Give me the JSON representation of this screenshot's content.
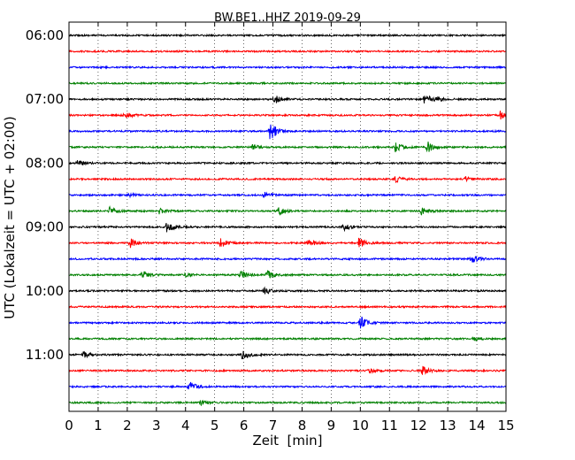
{
  "chart_data": {
    "type": "line",
    "title": "BW.BE1..HHZ 2019-09-29",
    "xlabel": "Zeit  [min]",
    "ylabel": "UTC (Lokalzeit = UTC + 02:00)",
    "xlim": [
      0,
      15
    ],
    "x_ticks": [
      "0",
      "1",
      "2",
      "3",
      "4",
      "5",
      "6",
      "7",
      "8",
      "9",
      "10",
      "11",
      "12",
      "13",
      "14",
      "15"
    ],
    "y_ticks": [
      "06:00",
      "07:00",
      "08:00",
      "09:00",
      "10:00",
      "11:00"
    ],
    "grid": "vertical dotted",
    "trace_interval_min": 15,
    "colors": [
      "#000000",
      "#ff0000",
      "#0000ff",
      "#008000"
    ],
    "traces": [
      {
        "start": "06:00",
        "color": "#000000",
        "events": []
      },
      {
        "start": "06:15",
        "color": "#ff0000",
        "events": []
      },
      {
        "start": "06:30",
        "color": "#0000ff",
        "events": []
      },
      {
        "start": "06:45",
        "color": "#008000",
        "events": []
      },
      {
        "start": "07:00",
        "color": "#000000",
        "events": [
          {
            "t": 7.05,
            "amp": 6
          },
          {
            "t": 12.2,
            "amp": 8
          },
          {
            "t": 12.6,
            "amp": 3
          }
        ]
      },
      {
        "start": "07:15",
        "color": "#ff0000",
        "events": [
          {
            "t": 1.9,
            "amp": 5
          },
          {
            "t": 14.8,
            "amp": 5
          }
        ]
      },
      {
        "start": "07:30",
        "color": "#0000ff",
        "events": [
          {
            "t": 6.9,
            "amp": 14
          }
        ]
      },
      {
        "start": "07:45",
        "color": "#008000",
        "events": [
          {
            "t": 6.3,
            "amp": 3
          },
          {
            "t": 11.2,
            "amp": 6
          },
          {
            "t": 12.3,
            "amp": 7
          }
        ]
      },
      {
        "start": "08:00",
        "color": "#000000",
        "events": [
          {
            "t": 0.3,
            "amp": 4
          }
        ]
      },
      {
        "start": "08:15",
        "color": "#ff0000",
        "events": [
          {
            "t": 11.2,
            "amp": 4
          },
          {
            "t": 13.6,
            "amp": 3
          }
        ]
      },
      {
        "start": "08:30",
        "color": "#0000ff",
        "events": [
          {
            "t": 6.7,
            "amp": 4
          },
          {
            "t": 2.0,
            "amp": 3
          }
        ]
      },
      {
        "start": "08:45",
        "color": "#008000",
        "events": [
          {
            "t": 1.4,
            "amp": 6
          },
          {
            "t": 3.1,
            "amp": 4
          },
          {
            "t": 7.2,
            "amp": 5
          },
          {
            "t": 12.1,
            "amp": 5
          }
        ]
      },
      {
        "start": "09:00",
        "color": "#000000",
        "events": [
          {
            "t": 3.35,
            "amp": 6
          },
          {
            "t": 9.4,
            "amp": 5
          }
        ]
      },
      {
        "start": "09:15",
        "color": "#ff0000",
        "events": [
          {
            "t": 2.1,
            "amp": 6
          },
          {
            "t": 5.2,
            "amp": 6
          },
          {
            "t": 8.2,
            "amp": 6
          },
          {
            "t": 9.95,
            "amp": 7
          }
        ]
      },
      {
        "start": "09:30",
        "color": "#0000ff",
        "events": [
          {
            "t": 13.8,
            "amp": 6
          }
        ]
      },
      {
        "start": "09:45",
        "color": "#008000",
        "events": [
          {
            "t": 2.5,
            "amp": 6
          },
          {
            "t": 4.0,
            "amp": 3
          },
          {
            "t": 5.9,
            "amp": 6
          },
          {
            "t": 6.8,
            "amp": 6
          }
        ]
      },
      {
        "start": "10:00",
        "color": "#000000",
        "events": [
          {
            "t": 6.7,
            "amp": 5
          }
        ]
      },
      {
        "start": "10:15",
        "color": "#ff0000",
        "events": []
      },
      {
        "start": "10:30",
        "color": "#0000ff",
        "events": [
          {
            "t": 10.0,
            "amp": 9
          }
        ]
      },
      {
        "start": "10:45",
        "color": "#008000",
        "events": [
          {
            "t": 13.9,
            "amp": 3
          }
        ]
      },
      {
        "start": "11:00",
        "color": "#000000",
        "events": [
          {
            "t": 0.5,
            "amp": 4
          },
          {
            "t": 5.95,
            "amp": 7
          }
        ]
      },
      {
        "start": "11:15",
        "color": "#ff0000",
        "events": [
          {
            "t": 10.3,
            "amp": 3
          },
          {
            "t": 12.1,
            "amp": 6
          }
        ]
      },
      {
        "start": "11:30",
        "color": "#0000ff",
        "events": [
          {
            "t": 4.1,
            "amp": 8
          }
        ]
      },
      {
        "start": "11:45",
        "color": "#008000",
        "events": [
          {
            "t": 4.5,
            "amp": 3
          }
        ]
      }
    ]
  }
}
